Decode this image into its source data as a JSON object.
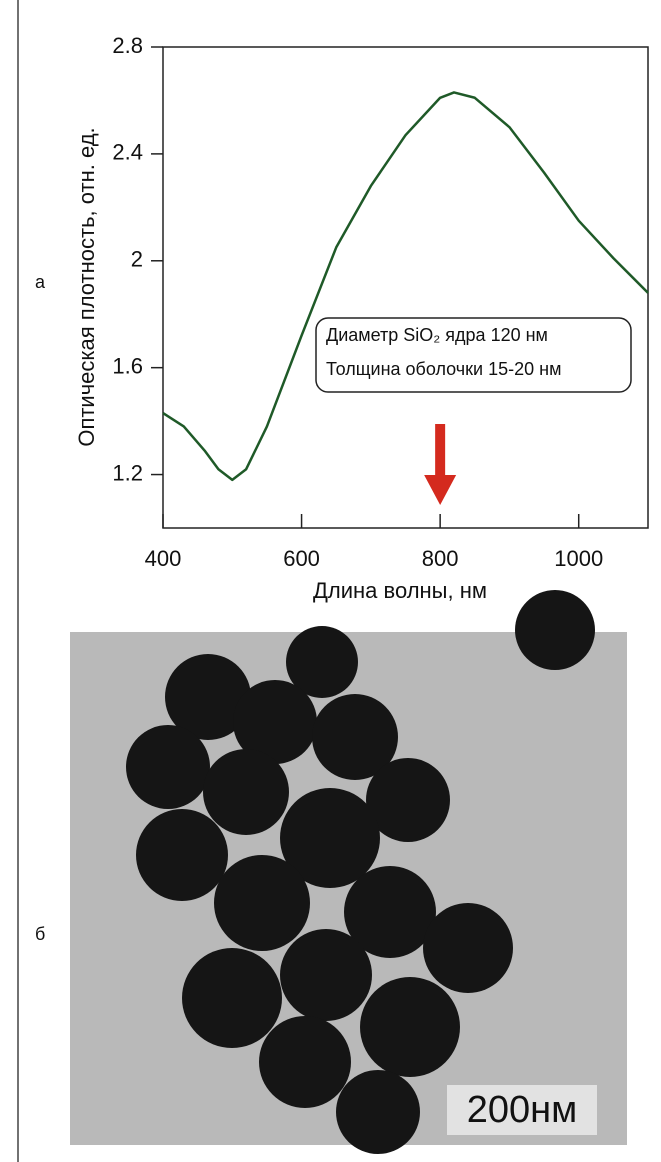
{
  "chart_data": {
    "type": "line",
    "x_label": "Длина волны, нм",
    "y_label": "Оптическая плотность, отн. ед.",
    "x": [
      400,
      430,
      460,
      480,
      500,
      520,
      550,
      600,
      650,
      700,
      750,
      800,
      820,
      850,
      900,
      950,
      1000,
      1050,
      1100
    ],
    "series": [
      {
        "color": "#1f5a28",
        "values": [
          1.43,
          1.38,
          1.29,
          1.22,
          1.18,
          1.22,
          1.38,
          1.72,
          2.05,
          2.28,
          2.47,
          2.61,
          2.63,
          2.61,
          2.5,
          2.33,
          2.15,
          2.01,
          1.88
        ]
      }
    ],
    "xlim": [
      400,
      1100
    ],
    "xticks": [
      400,
      600,
      800,
      1000
    ],
    "ylim": [
      1.0,
      2.8
    ],
    "yticks": [
      1.2,
      1.6,
      2,
      2.4,
      2.8
    ],
    "annotations": [
      "Диаметр SiO₂ ядра 120 нм",
      "Толщина оболочки 15-20 нм"
    ],
    "arrow_x": 800,
    "arrow_color": "#d42a1e"
  },
  "panel_labels": [
    "а",
    "б"
  ],
  "image": {
    "scale_bar": "200нм"
  }
}
